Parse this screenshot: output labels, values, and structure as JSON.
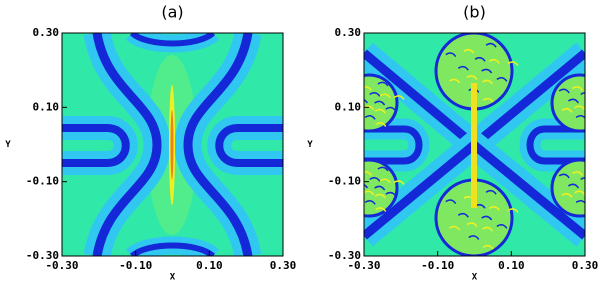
{
  "chart_data": [
    {
      "type": "heatmap",
      "title": "(a)",
      "xlabel": "X",
      "ylabel": "Y",
      "xlim": [
        -0.3,
        0.3
      ],
      "ylim": [
        -0.3,
        0.3
      ],
      "xticks": [
        {
          "value": -0.3,
          "label": "-0.30"
        },
        {
          "value": -0.1,
          "label": "-0.10"
        },
        {
          "value": 0.1,
          "label": "0.10"
        },
        {
          "value": 0.3,
          "label": "0.30"
        }
      ],
      "yticks": [
        {
          "value": -0.3,
          "label": "-0.30"
        },
        {
          "value": -0.1,
          "label": "-0.10"
        },
        {
          "value": 0.1,
          "label": "0.10"
        },
        {
          "value": 0.3,
          "label": "0.30"
        }
      ]
    },
    {
      "type": "heatmap",
      "title": "(b)",
      "xlabel": "X",
      "ylabel": "Y",
      "xlim": [
        -0.3,
        0.3
      ],
      "ylim": [
        -0.3,
        0.3
      ],
      "xticks": [
        {
          "value": -0.3,
          "label": "-0.30"
        },
        {
          "value": -0.1,
          "label": "-0.10"
        },
        {
          "value": 0.1,
          "label": "0.10"
        },
        {
          "value": 0.3,
          "label": "0.30"
        }
      ],
      "yticks": [
        {
          "value": -0.3,
          "label": "-0.30"
        },
        {
          "value": -0.1,
          "label": "-0.10"
        },
        {
          "value": 0.1,
          "label": "0.10"
        },
        {
          "value": 0.3,
          "label": "0.30"
        }
      ]
    }
  ]
}
